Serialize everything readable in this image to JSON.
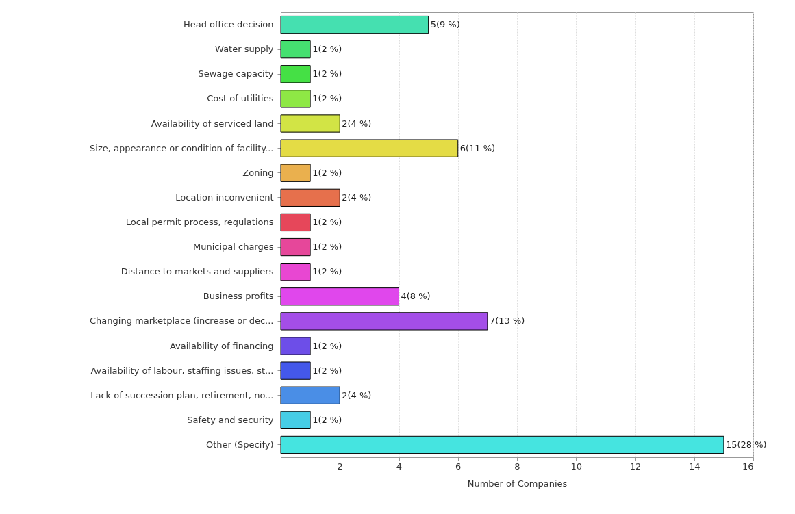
{
  "chart_data": {
    "type": "bar",
    "orientation": "horizontal",
    "xlabel": "Number of Companies",
    "categories": [
      "Head office decision",
      "Water supply",
      "Sewage capacity",
      "Cost of utilities",
      "Availability of serviced land",
      "Size, appearance or condition of facility...",
      "Zoning",
      "Location inconvenient",
      "Local permit process, regulations",
      "Municipal charges",
      "Distance to markets and suppliers",
      "Business profits",
      "Changing marketplace (increase or dec...",
      "Availability of financing",
      "Availability of labour, staffing issues, st...",
      "Lack of succession plan, retirement, no...",
      "Safety and security",
      "Other (Specify)"
    ],
    "values": [
      5,
      1,
      1,
      1,
      2,
      6,
      1,
      2,
      1,
      1,
      1,
      4,
      7,
      1,
      1,
      2,
      1,
      15
    ],
    "value_labels": [
      "5(9 %)",
      "1(2 %)",
      "1(2 %)",
      "1(2 %)",
      "2(4 %)",
      "6(11 %)",
      "1(2 %)",
      "2(4 %)",
      "1(2 %)",
      "1(2 %)",
      "1(2 %)",
      "4(8 %)",
      "7(13 %)",
      "1(2 %)",
      "1(2 %)",
      "2(4 %)",
      "1(2 %)",
      "15(28 %)"
    ],
    "colors": [
      "#45e0b0",
      "#45e070",
      "#45e045",
      "#8ee845",
      "#d2e445",
      "#e4dc45",
      "#eab04e",
      "#e6704c",
      "#e6475a",
      "#e6479a",
      "#e847d2",
      "#e047ec",
      "#a44ee8",
      "#6d4ee8",
      "#4458ea",
      "#4a8ee6",
      "#46cde6",
      "#45e4e0"
    ],
    "xlim": [
      0,
      16
    ],
    "xticks": [
      {
        "value": 0,
        "label": null
      },
      2,
      4,
      6,
      8,
      10,
      12,
      14,
      16
    ],
    "grid": "x"
  }
}
